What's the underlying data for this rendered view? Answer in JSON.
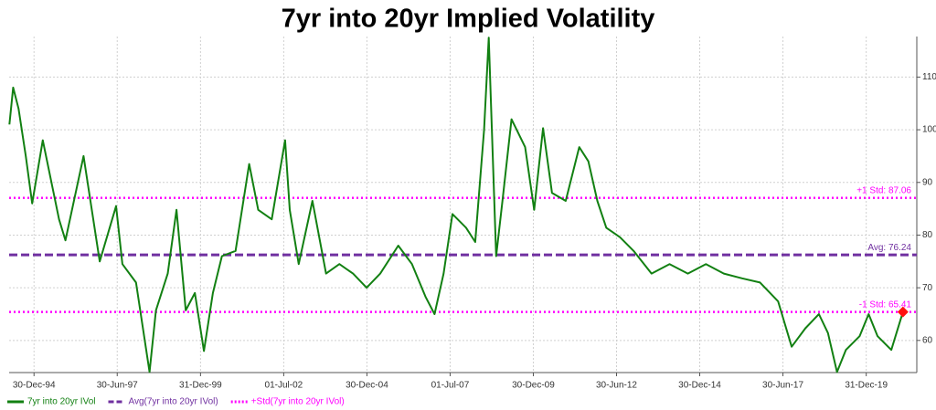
{
  "chart_data": {
    "type": "line",
    "title": "7yr into 20yr Implied Volatility",
    "xlim": [
      "1994-04-01",
      "2021-07-08"
    ],
    "xticks": [
      {
        "value": "1994-12-30",
        "label": "30-Dec-94"
      },
      {
        "value": "1997-06-30",
        "label": "30-Jun-97"
      },
      {
        "value": "1999-12-31",
        "label": "31-Dec-99"
      },
      {
        "value": "2002-07-01",
        "label": "01-Jul-02"
      },
      {
        "value": "2004-12-30",
        "label": "30-Dec-04"
      },
      {
        "value": "2007-07-01",
        "label": "01-Jul-07"
      },
      {
        "value": "2009-12-30",
        "label": "30-Dec-09"
      },
      {
        "value": "2012-06-30",
        "label": "30-Jun-12"
      },
      {
        "value": "2014-12-30",
        "label": "30-Dec-14"
      },
      {
        "value": "2017-06-30",
        "label": "30-Jun-17"
      },
      {
        "value": "2019-12-31",
        "label": "31-Dec-19"
      }
    ],
    "ylim": [
      53.9,
      117.7
    ],
    "yticks": [
      60,
      70,
      80,
      90,
      100,
      110
    ],
    "grid": true,
    "x": [
      "1994-04-04",
      "1994-05-15",
      "1994-07-13",
      "1994-10-01",
      "1994-12-10",
      "1995-04-05",
      "1995-10-01",
      "1995-12-10",
      "1996-06-25",
      "1996-12-20",
      "1997-06-18",
      "1997-08-26",
      "1998-01-22",
      "1998-06-20",
      "1998-08-29",
      "1999-01-05",
      "1999-04-12",
      "1999-07-22",
      "1999-10-30",
      "2000-02-06",
      "2000-05-15",
      "2000-08-22",
      "2001-01-18",
      "2001-06-17",
      "2001-09-24",
      "2002-02-20",
      "2002-07-16",
      "2002-09-05",
      "2002-12-13",
      "2003-05-12",
      "2003-10-08",
      "2004-03-03",
      "2004-07-30",
      "2004-12-27",
      "2005-05-25",
      "2005-12-09",
      "2006-05-08",
      "2006-10-04",
      "2007-01-11",
      "2007-04-20",
      "2007-07-27",
      "2007-12-23",
      "2008-04-01",
      "2008-07-08",
      "2008-08-28",
      "2008-11-17",
      "2009-01-25",
      "2009-05-05",
      "2009-10-01",
      "2010-01-08",
      "2010-04-16",
      "2010-07-23",
      "2010-12-20",
      "2011-05-18",
      "2011-08-26",
      "2011-12-02",
      "2012-03-10",
      "2012-08-07",
      "2013-01-04",
      "2013-07-19",
      "2014-02-02",
      "2014-08-21",
      "2015-03-08",
      "2015-09-21",
      "2016-04-07",
      "2016-10-22",
      "2017-05-08",
      "2017-10-04",
      "2018-03-03",
      "2018-07-30",
      "2018-11-06",
      "2019-02-13",
      "2019-05-22",
      "2019-10-19",
      "2020-01-26",
      "2020-05-04",
      "2020-10-01",
      "2021-02-06"
    ],
    "series": [
      {
        "name": "7yr into 20yr IVol",
        "color": "#128012",
        "values": [
          101,
          108,
          104,
          95,
          86,
          98,
          83,
          79,
          95,
          75,
          85.5,
          74.5,
          71,
          54,
          65.7,
          72.7,
          84.8,
          65.7,
          69,
          58,
          69,
          76,
          77,
          93.5,
          84.8,
          83,
          98,
          84.8,
          74.5,
          86.5,
          72.7,
          74.5,
          72.7,
          70,
          72.7,
          78,
          74.5,
          68.3,
          65,
          72.7,
          84,
          81.4,
          78.7,
          100,
          117.5,
          76,
          86.5,
          102,
          96.7,
          84.8,
          100.3,
          88,
          86.5,
          96.7,
          94,
          86.5,
          81.4,
          79.6,
          77,
          72.7,
          74.5,
          72.7,
          74.5,
          72.7,
          71.8,
          71,
          67.4,
          58.8,
          62.3,
          65,
          61.4,
          54,
          58.2,
          60.8,
          65,
          60.8,
          58.2,
          65.4
        ]
      }
    ],
    "last_marker_color": "#ff1010",
    "reference_lines": [
      {
        "name": "Avg(7yr into 20yr IVol)",
        "color": "#7030a0",
        "values": [
          76.24
        ],
        "value_labels": [
          "Avg: 76.24"
        ]
      },
      {
        "name": "+Std(7yr into 20yr IVol)",
        "color": "#ff00ff",
        "values": [
          87.06,
          65.41
        ],
        "value_labels": [
          "+1 Std: 87.06",
          "-1 Std: 65.41"
        ]
      }
    ]
  }
}
